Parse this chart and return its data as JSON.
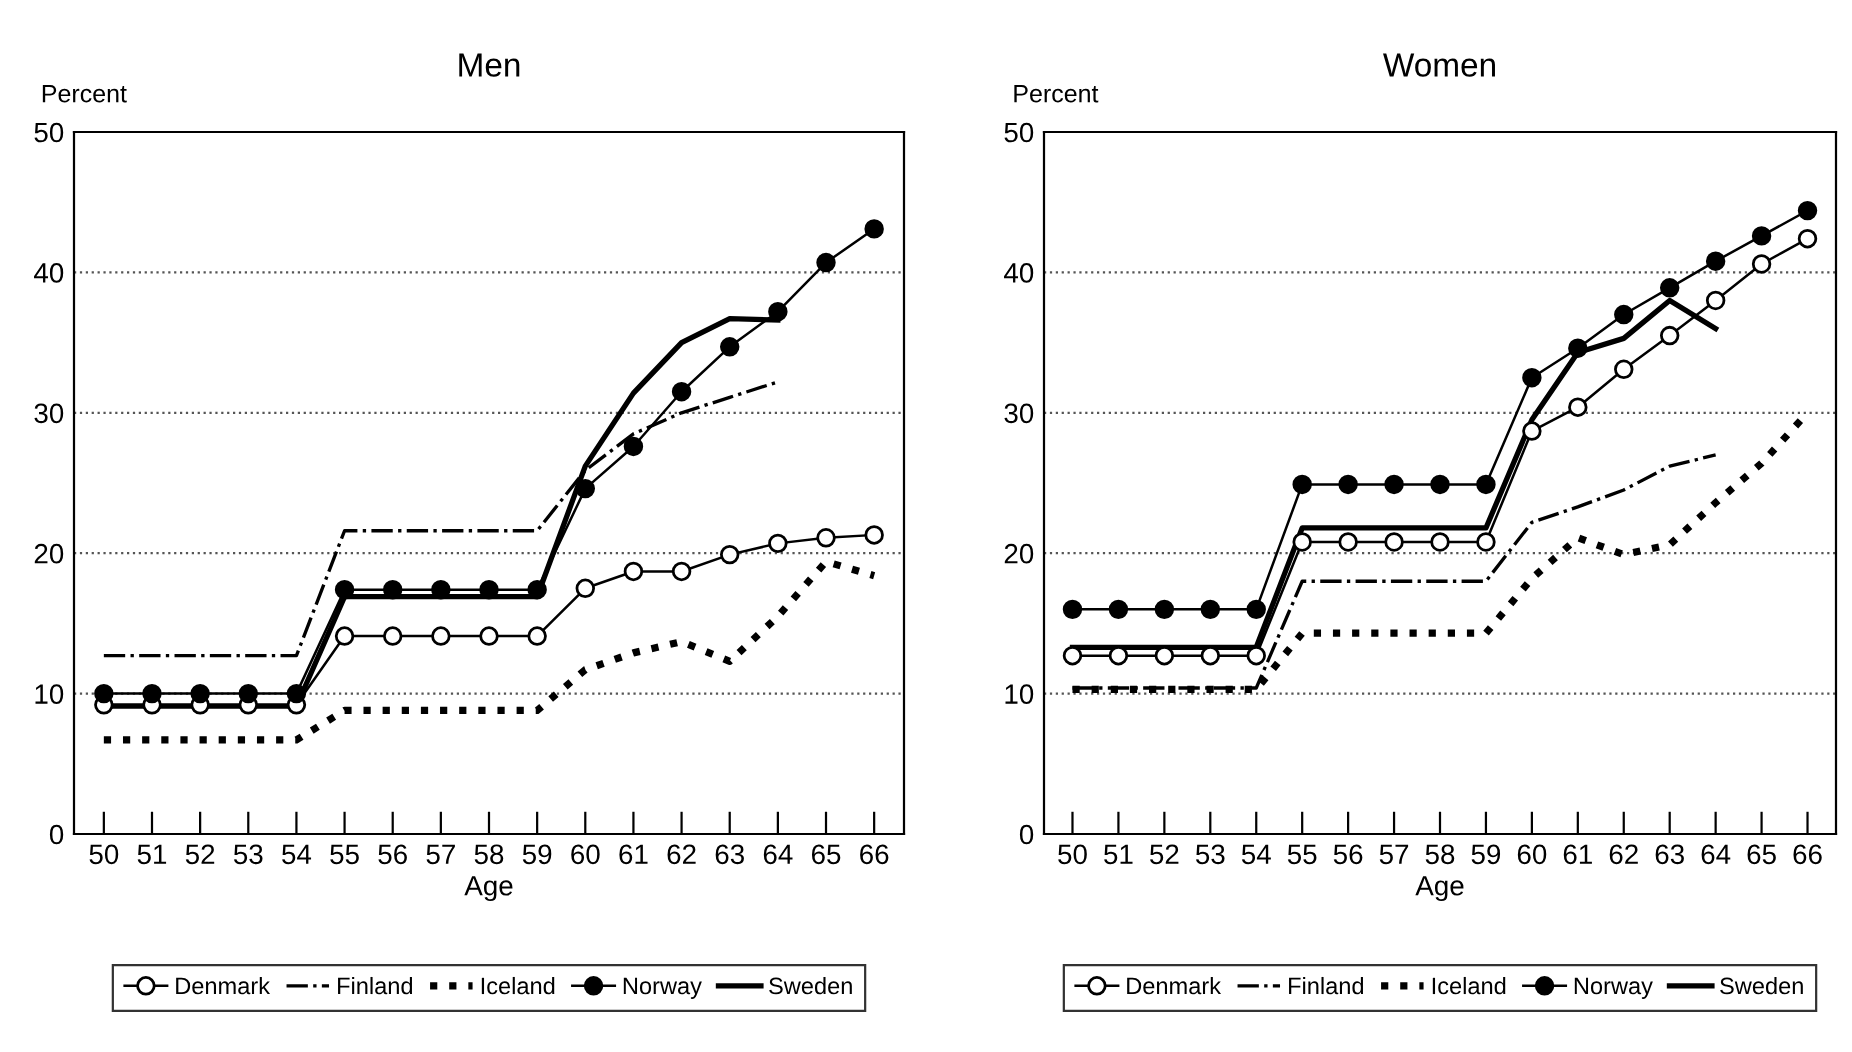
{
  "chart_data": [
    {
      "type": "line",
      "title": "Men",
      "xlabel": "Age",
      "ylabel": "Percent",
      "categories": [
        "50",
        "51",
        "52",
        "53",
        "54",
        "55",
        "56",
        "57",
        "58",
        "59",
        "60",
        "61",
        "62",
        "63",
        "64",
        "65",
        "66"
      ],
      "ylim": [
        0,
        50
      ],
      "yticks": [
        0,
        10,
        20,
        30,
        40,
        50
      ],
      "grid": "y",
      "legend": "bottom",
      "series": [
        {
          "name": "Denmark",
          "color": "#000000",
          "marker": "open circle",
          "line_style": "solid",
          "values": [
            9.2,
            9.2,
            9.2,
            9.2,
            9.2,
            14.1,
            14.1,
            14.1,
            14.1,
            14.1,
            17.5,
            18.7,
            18.7,
            19.9,
            20.7,
            21.1,
            21.3
          ]
        },
        {
          "name": "Finland",
          "color": "#000000",
          "marker": "none",
          "line_style": "dashdot",
          "values": [
            12.7,
            12.7,
            12.7,
            12.7,
            12.7,
            21.6,
            21.6,
            21.6,
            21.6,
            21.6,
            25.9,
            28.5,
            30.0,
            31.1,
            32.2,
            null,
            null
          ]
        },
        {
          "name": "Iceland",
          "color": "#000000",
          "marker": "none",
          "line_style": "dotted",
          "values": [
            6.7,
            6.7,
            6.7,
            6.7,
            6.7,
            8.8,
            8.8,
            8.8,
            8.8,
            8.8,
            11.7,
            12.9,
            13.7,
            12.3,
            15.5,
            19.4,
            18.4
          ]
        },
        {
          "name": "Norway",
          "color": "#000000",
          "marker": "circle",
          "line_style": "solid",
          "values": [
            10.0,
            10.0,
            10.0,
            10.0,
            10.0,
            17.4,
            17.4,
            17.4,
            17.4,
            17.4,
            24.6,
            27.6,
            31.5,
            34.7,
            37.2,
            40.7,
            43.1
          ]
        },
        {
          "name": "Sweden",
          "color": "#000000",
          "marker": "none",
          "line_style": "solid",
          "values": [
            9.1,
            9.1,
            9.1,
            9.1,
            9.1,
            16.9,
            16.9,
            16.9,
            16.9,
            16.9,
            26.2,
            31.4,
            35.0,
            36.7,
            36.6,
            null,
            null
          ]
        }
      ]
    },
    {
      "type": "line",
      "title": "Women",
      "xlabel": "Age",
      "ylabel": "Percent",
      "categories": [
        "50",
        "51",
        "52",
        "53",
        "54",
        "55",
        "56",
        "57",
        "58",
        "59",
        "60",
        "61",
        "62",
        "63",
        "64",
        "65",
        "66"
      ],
      "ylim": [
        0,
        50
      ],
      "yticks": [
        0,
        10,
        20,
        30,
        40,
        50
      ],
      "grid": "y",
      "legend": "bottom",
      "series": [
        {
          "name": "Denmark",
          "color": "#000000",
          "marker": "open circle",
          "line_style": "solid",
          "values": [
            12.7,
            12.7,
            12.7,
            12.7,
            12.7,
            20.8,
            20.8,
            20.8,
            20.8,
            20.8,
            28.7,
            30.4,
            33.1,
            35.5,
            38.0,
            40.6,
            42.4
          ]
        },
        {
          "name": "Finland",
          "color": "#000000",
          "marker": "none",
          "line_style": "dashdot",
          "values": [
            10.4,
            10.4,
            10.4,
            10.4,
            10.4,
            18.0,
            18.0,
            18.0,
            18.0,
            18.0,
            22.2,
            23.3,
            24.5,
            26.2,
            27.0,
            null,
            null
          ]
        },
        {
          "name": "Iceland",
          "color": "#000000",
          "marker": "none",
          "line_style": "dotted",
          "values": [
            10.3,
            10.3,
            10.3,
            10.3,
            10.3,
            14.3,
            14.3,
            14.3,
            14.3,
            14.3,
            18.2,
            21.1,
            19.9,
            20.6,
            23.6,
            26.4,
            30.0
          ]
        },
        {
          "name": "Norway",
          "color": "#000000",
          "marker": "circle",
          "line_style": "solid",
          "values": [
            16.0,
            16.0,
            16.0,
            16.0,
            16.0,
            24.9,
            24.9,
            24.9,
            24.9,
            24.9,
            32.5,
            34.6,
            37.0,
            38.9,
            40.8,
            42.6,
            44.4
          ]
        },
        {
          "name": "Sweden",
          "color": "#000000",
          "marker": "none",
          "line_style": "solid",
          "values": [
            13.3,
            13.3,
            13.3,
            13.3,
            13.3,
            21.8,
            21.8,
            21.8,
            21.8,
            21.8,
            29.5,
            34.3,
            35.3,
            38.0,
            36.0,
            null,
            null
          ]
        }
      ]
    }
  ]
}
